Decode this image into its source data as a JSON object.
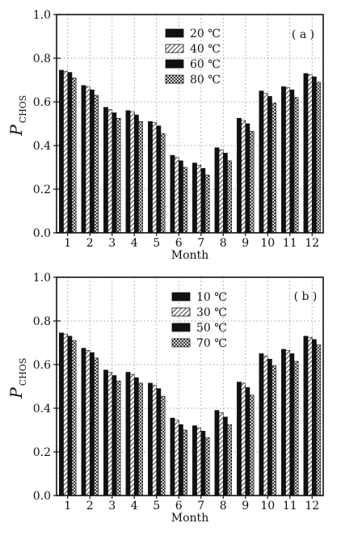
{
  "chart_data": [
    {
      "type": "bar",
      "panel_tag": "( a )",
      "xlabel": "Month",
      "ylabel": "P",
      "ylabel_sub": "CHOS",
      "ylim": [
        0,
        1.0
      ],
      "yticks": [
        "0.0",
        "0.2",
        "0.4",
        "0.6",
        "0.8",
        "1.0"
      ],
      "categories": [
        "1",
        "2",
        "3",
        "4",
        "5",
        "6",
        "7",
        "8",
        "9",
        "10",
        "11",
        "12"
      ],
      "legend_position": "top-center",
      "grid": "dotted vertical and horizontal",
      "series": [
        {
          "name": "20 ℃",
          "pattern": "solid",
          "values": [
            0.745,
            0.675,
            0.575,
            0.56,
            0.51,
            0.355,
            0.32,
            0.39,
            0.525,
            0.65,
            0.67,
            0.73
          ]
        },
        {
          "name": "40 ℃",
          "pattern": "hatch",
          "values": [
            0.74,
            0.67,
            0.565,
            0.555,
            0.505,
            0.345,
            0.31,
            0.38,
            0.515,
            0.64,
            0.665,
            0.725
          ]
        },
        {
          "name": "60 ℃",
          "pattern": "solid",
          "values": [
            0.735,
            0.655,
            0.55,
            0.54,
            0.49,
            0.33,
            0.295,
            0.365,
            0.5,
            0.625,
            0.655,
            0.715
          ]
        },
        {
          "name": "80 ℃",
          "pattern": "crosshatch",
          "values": [
            0.71,
            0.63,
            0.525,
            0.51,
            0.455,
            0.3,
            0.265,
            0.33,
            0.465,
            0.595,
            0.62,
            0.69
          ]
        }
      ]
    },
    {
      "type": "bar",
      "panel_tag": "( b )",
      "xlabel": "Month",
      "ylabel": "P",
      "ylabel_sub": "CHOS",
      "ylim": [
        0,
        1.0
      ],
      "yticks": [
        "0.0",
        "0.2",
        "0.4",
        "0.6",
        "0.8",
        "1.0"
      ],
      "categories": [
        "1",
        "2",
        "3",
        "4",
        "5",
        "6",
        "7",
        "8",
        "9",
        "10",
        "11",
        "12"
      ],
      "legend_position": "top-center",
      "grid": "dotted vertical and horizontal",
      "series": [
        {
          "name": "10 ℃",
          "pattern": "solid",
          "values": [
            0.745,
            0.675,
            0.575,
            0.565,
            0.515,
            0.355,
            0.32,
            0.39,
            0.52,
            0.65,
            0.67,
            0.73
          ]
        },
        {
          "name": "30 ℃",
          "pattern": "hatch",
          "values": [
            0.74,
            0.665,
            0.565,
            0.555,
            0.505,
            0.345,
            0.31,
            0.38,
            0.515,
            0.64,
            0.665,
            0.725
          ]
        },
        {
          "name": "50 ℃",
          "pattern": "solid",
          "values": [
            0.73,
            0.655,
            0.55,
            0.54,
            0.49,
            0.325,
            0.295,
            0.36,
            0.495,
            0.625,
            0.65,
            0.715
          ]
        },
        {
          "name": "70 ℃",
          "pattern": "crosshatch",
          "values": [
            0.71,
            0.63,
            0.525,
            0.515,
            0.455,
            0.3,
            0.265,
            0.325,
            0.46,
            0.595,
            0.615,
            0.69
          ]
        }
      ]
    }
  ]
}
